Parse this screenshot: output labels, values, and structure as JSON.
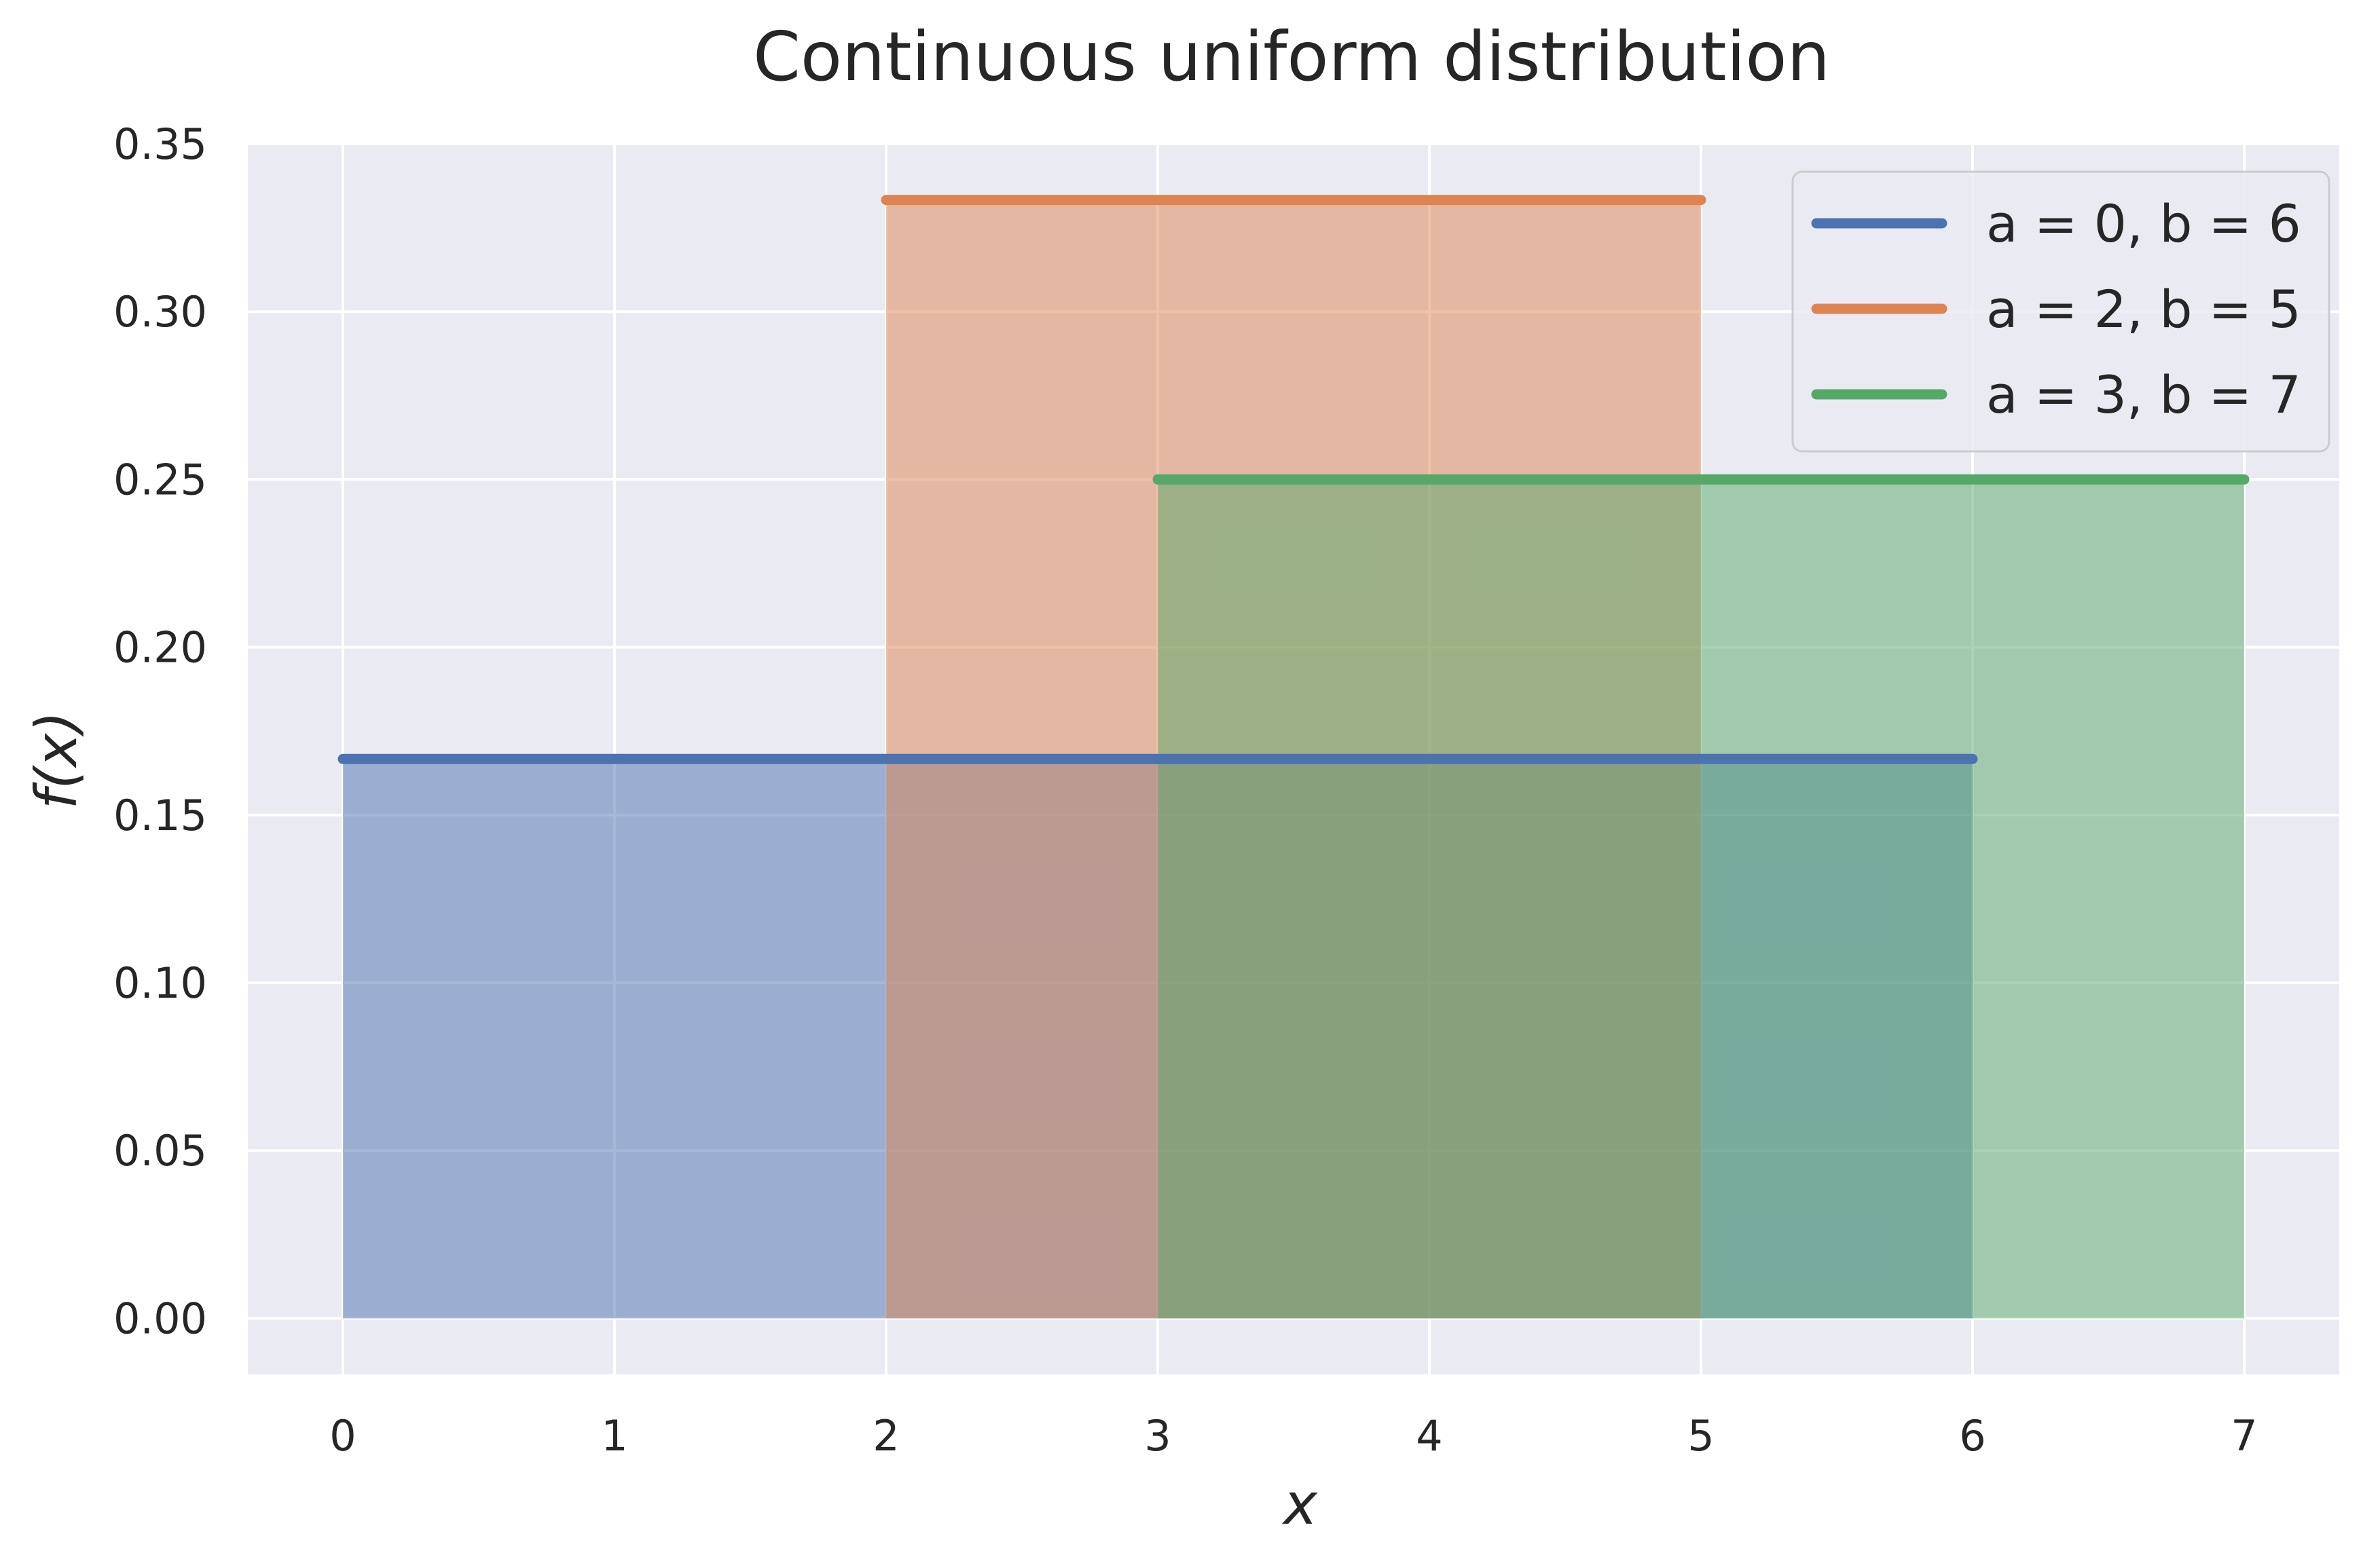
{
  "chart_data": {
    "type": "area",
    "title": "Continuous uniform distribution",
    "xlabel": "x",
    "ylabel": "f(x)",
    "xlim": [
      -0.35,
      7.35
    ],
    "ylim": [
      -0.0167,
      0.35
    ],
    "xticks": [
      0,
      1,
      2,
      3,
      4,
      5,
      6,
      7
    ],
    "yticks": [
      0.0,
      0.05,
      0.1,
      0.15,
      0.2,
      0.25,
      0.3,
      0.35
    ],
    "ytick_labels": [
      "0.00",
      "0.05",
      "0.10",
      "0.15",
      "0.20",
      "0.25",
      "0.30",
      "0.35"
    ],
    "grid": true,
    "legend_position": "top-right",
    "series": [
      {
        "name": "a = 0, b = 6",
        "a": 0,
        "b": 6,
        "x": [
          0,
          6
        ],
        "y": [
          0.1667,
          0.1667
        ],
        "color": "#4c72b0"
      },
      {
        "name": "a = 2, b = 5",
        "a": 2,
        "b": 5,
        "x": [
          2,
          5
        ],
        "y": [
          0.3333,
          0.3333
        ],
        "color": "#dd8452"
      },
      {
        "name": "a = 3, b = 7",
        "a": 3,
        "b": 7,
        "x": [
          3,
          7
        ],
        "y": [
          0.25,
          0.25
        ],
        "color": "#55a868"
      }
    ],
    "colors": {
      "plot_background": "#eaeaf2",
      "grid": "#ffffff"
    }
  }
}
